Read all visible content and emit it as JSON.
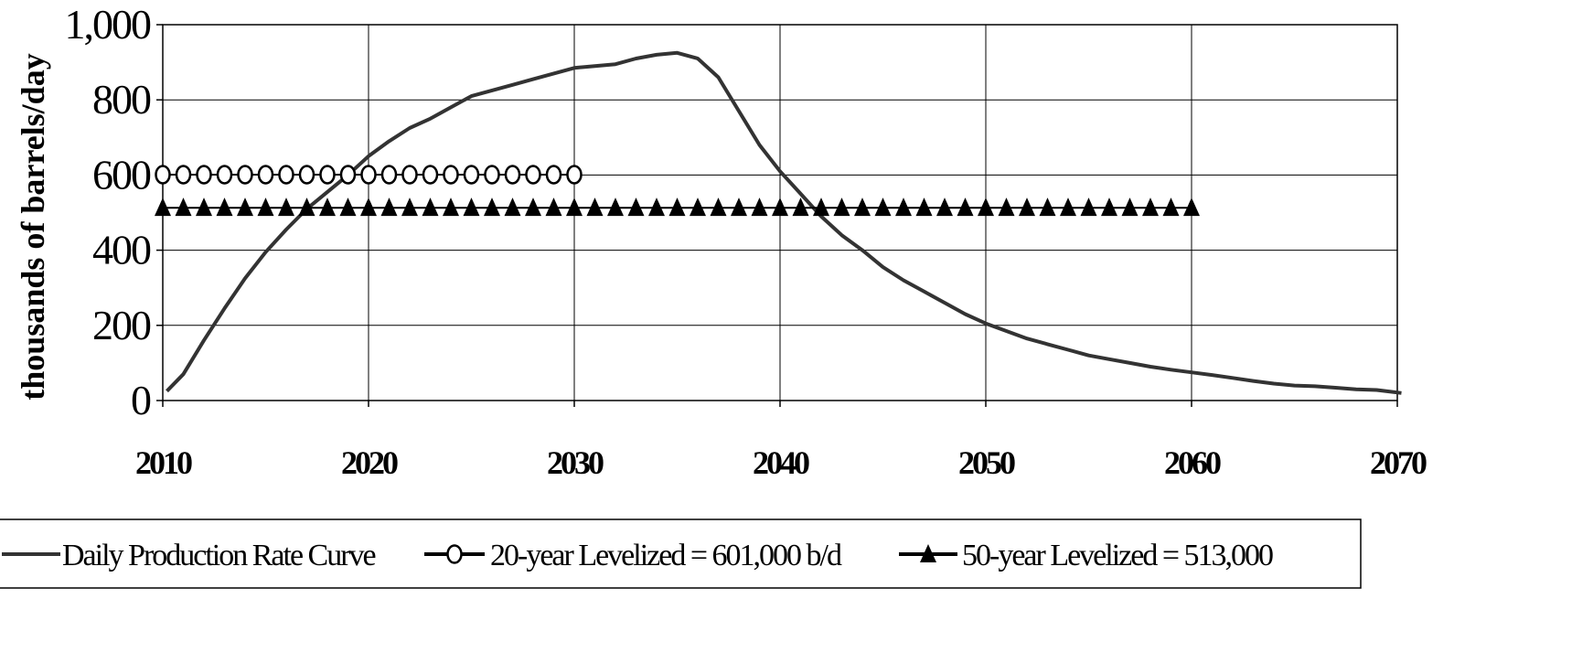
{
  "chart_data": {
    "type": "line",
    "title": "",
    "xlabel": "",
    "ylabel": "thousands of barrels/day",
    "xlim": [
      2010,
      2070
    ],
    "ylim": [
      0,
      1000
    ],
    "x_ticks": [
      "2010",
      "2020",
      "2030",
      "2040",
      "2050",
      "2060",
      "2070"
    ],
    "y_ticks": [
      "0",
      "200",
      "400",
      "600",
      "800",
      "1,000"
    ],
    "grid": true,
    "legend_position": "bottom",
    "series": [
      {
        "name": "Daily Production Rate Curve",
        "marker": "none",
        "color": "#333333",
        "x": [
          2010.2,
          2011,
          2012,
          2013,
          2014,
          2015,
          2016,
          2017,
          2018,
          2019,
          2020,
          2021,
          2022,
          2023,
          2024,
          2025,
          2026,
          2027,
          2028,
          2029,
          2030,
          2031,
          2032,
          2033,
          2034,
          2035,
          2036,
          2037,
          2038,
          2039,
          2040,
          2041,
          2042,
          2043,
          2044,
          2045,
          2046,
          2047,
          2048,
          2049,
          2050,
          2051,
          2052,
          2053,
          2054,
          2055,
          2056,
          2057,
          2058,
          2059,
          2060,
          2061,
          2062,
          2063,
          2064,
          2065,
          2066,
          2067,
          2068,
          2069,
          2070.2
        ],
        "values": [
          25,
          70,
          160,
          245,
          325,
          395,
          455,
          510,
          555,
          600,
          650,
          690,
          725,
          750,
          780,
          810,
          825,
          840,
          855,
          870,
          885,
          890,
          895,
          910,
          920,
          925,
          910,
          860,
          770,
          680,
          610,
          550,
          490,
          440,
          400,
          355,
          320,
          290,
          260,
          230,
          205,
          185,
          165,
          150,
          135,
          120,
          110,
          100,
          90,
          82,
          75,
          68,
          60,
          52,
          45,
          40,
          38,
          34,
          30,
          28,
          20
        ]
      },
      {
        "name": "20-year Levelized = 601,000 b/d",
        "marker": "circle",
        "color": "#000000",
        "x": [
          2010,
          2011,
          2012,
          2013,
          2014,
          2015,
          2016,
          2017,
          2018,
          2019,
          2020,
          2021,
          2022,
          2023,
          2024,
          2025,
          2026,
          2027,
          2028,
          2029,
          2030
        ],
        "values": [
          601,
          601,
          601,
          601,
          601,
          601,
          601,
          601,
          601,
          601,
          601,
          601,
          601,
          601,
          601,
          601,
          601,
          601,
          601,
          601,
          601
        ]
      },
      {
        "name": "50-year Levelized = 513,000",
        "marker": "triangle",
        "color": "#000000",
        "x": [
          2010,
          2011,
          2012,
          2013,
          2014,
          2015,
          2016,
          2017,
          2018,
          2019,
          2020,
          2021,
          2022,
          2023,
          2024,
          2025,
          2026,
          2027,
          2028,
          2029,
          2030,
          2031,
          2032,
          2033,
          2034,
          2035,
          2036,
          2037,
          2038,
          2039,
          2040,
          2041,
          2042,
          2043,
          2044,
          2045,
          2046,
          2047,
          2048,
          2049,
          2050,
          2051,
          2052,
          2053,
          2054,
          2055,
          2056,
          2057,
          2058,
          2059,
          2060
        ],
        "values": [
          513,
          513,
          513,
          513,
          513,
          513,
          513,
          513,
          513,
          513,
          513,
          513,
          513,
          513,
          513,
          513,
          513,
          513,
          513,
          513,
          513,
          513,
          513,
          513,
          513,
          513,
          513,
          513,
          513,
          513,
          513,
          513,
          513,
          513,
          513,
          513,
          513,
          513,
          513,
          513,
          513,
          513,
          513,
          513,
          513,
          513,
          513,
          513,
          513,
          513,
          513
        ]
      }
    ]
  }
}
